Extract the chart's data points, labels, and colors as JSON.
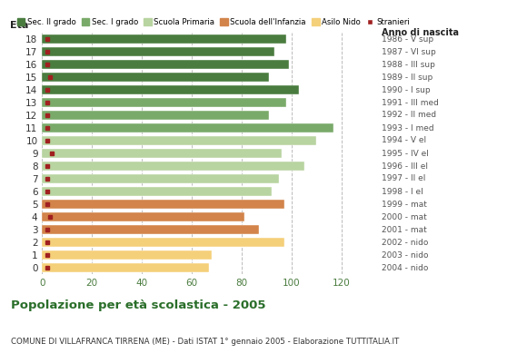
{
  "ages": [
    18,
    17,
    16,
    15,
    14,
    13,
    12,
    11,
    10,
    9,
    8,
    7,
    6,
    5,
    4,
    3,
    2,
    1,
    0
  ],
  "values": [
    98,
    93,
    99,
    91,
    103,
    98,
    91,
    117,
    110,
    96,
    105,
    95,
    92,
    97,
    81,
    87,
    97,
    68,
    67
  ],
  "stranieri": [
    2,
    2,
    2,
    3,
    2,
    2,
    2,
    2,
    2,
    4,
    2,
    2,
    2,
    2,
    3,
    2,
    2,
    2,
    2
  ],
  "bar_colors": [
    "#4a7c3f",
    "#4a7c3f",
    "#4a7c3f",
    "#4a7c3f",
    "#4a7c3f",
    "#7aaa6a",
    "#7aaa6a",
    "#7aaa6a",
    "#b8d4a0",
    "#b8d4a0",
    "#b8d4a0",
    "#b8d4a0",
    "#b8d4a0",
    "#d2844a",
    "#d2844a",
    "#d2844a",
    "#f5d07a",
    "#f5d07a",
    "#f5d07a"
  ],
  "right_labels": [
    "1986 - V sup",
    "1987 - VI sup",
    "1988 - III sup",
    "1989 - II sup",
    "1990 - I sup",
    "1991 - III med",
    "1992 - II med",
    "1993 - I med",
    "1994 - V el",
    "1995 - IV el",
    "1996 - III el",
    "1997 - II el",
    "1998 - I el",
    "1999 - mat",
    "2000 - mat",
    "2001 - mat",
    "2002 - nido",
    "2003 - nido",
    "2004 - nido"
  ],
  "legend_labels": [
    "Sec. II grado",
    "Sec. I grado",
    "Scuola Primaria",
    "Scuola dell'Infanzia",
    "Asilo Nido",
    "Stranieri"
  ],
  "legend_colors": [
    "#4a7c3f",
    "#7aaa6a",
    "#b8d4a0",
    "#d2844a",
    "#f5d07a",
    "#a02020"
  ],
  "title": "Popolazione per età scolastica - 2005",
  "subtitle": "COMUNE DI VILLAFRANCA TIRRENA (ME) - Dati ISTAT 1° gennaio 2005 - Elaborazione TUTTITALIA.IT",
  "xlabel_left": "Età",
  "xlabel_right": "Anno di nascita",
  "xlim": [
    0,
    130
  ],
  "xticks": [
    0,
    20,
    40,
    60,
    80,
    100,
    120
  ],
  "stranieri_color": "#a02020",
  "stranieri_size": 3.5,
  "background_color": "#ffffff",
  "bar_height": 0.78,
  "grid_color": "#bbbbbb",
  "xticklabel_color": "#4a7c3f"
}
